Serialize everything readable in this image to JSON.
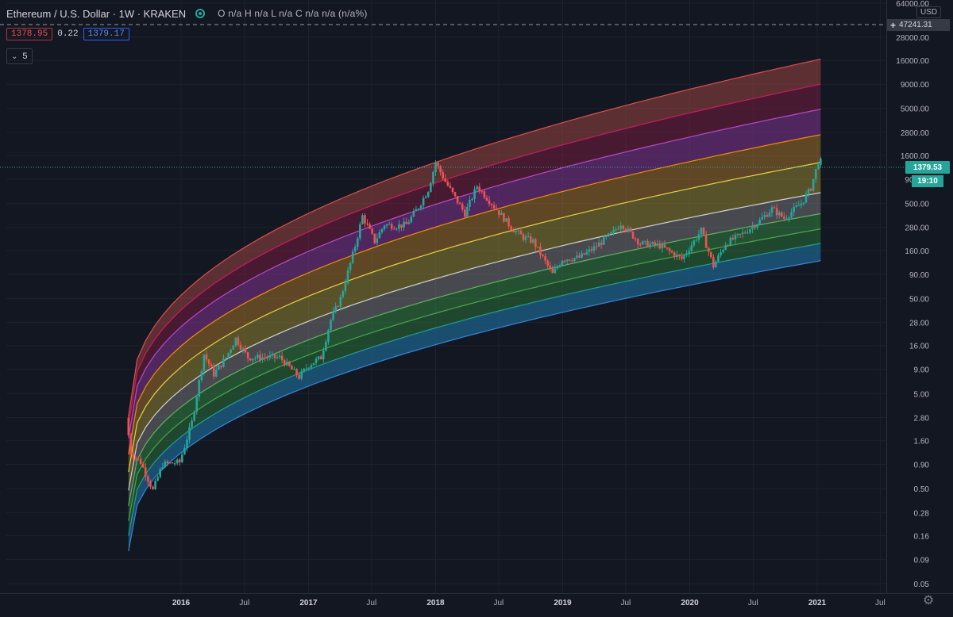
{
  "header": {
    "symbol": "Ethereum / U.S. Dollar · 1W · KRAKEN",
    "ohlc": "O n/a  H n/a  L n/a  C n/a  n/a (n/a%)",
    "bid": "1378.95",
    "spread": "0.22",
    "ask": "1379.17",
    "indicator_count": "5",
    "indicator_chevron": "chevron-down-icon"
  },
  "price_axis": {
    "currency": "USD",
    "crosshair_value": "47241.31",
    "current_price": "1379.53",
    "countdown": "19:10"
  },
  "colors": {
    "background": "#131722",
    "grid": "#1e222d",
    "candle_up": "#26a69a",
    "candle_down": "#ef5350",
    "price_tag": "#26a69a",
    "bid_red": "#ef5350",
    "ask_blue": "#2962ff"
  },
  "chart_data": {
    "type": "candlestick",
    "title": "Ethereum / U.S. Dollar · 1W · KRAKEN",
    "y_scale": "log",
    "ylim": [
      0.04,
      64000
    ],
    "y_ticks": [
      {
        "label": "64000.00",
        "value": 64000
      },
      {
        "label": "47241.31",
        "value": 47241.31,
        "hidden": true
      },
      {
        "label": "28000.00",
        "value": 28000
      },
      {
        "label": "16000.00",
        "value": 16000
      },
      {
        "label": "9000.00",
        "value": 9000
      },
      {
        "label": "5000.00",
        "value": 5000
      },
      {
        "label": "2800.00",
        "value": 2800
      },
      {
        "label": "1600.00",
        "value": 1600
      },
      {
        "label": "900.00",
        "value": 900
      },
      {
        "label": "500.00",
        "value": 500
      },
      {
        "label": "280.00",
        "value": 280
      },
      {
        "label": "160.00",
        "value": 160
      },
      {
        "label": "90.00",
        "value": 90
      },
      {
        "label": "50.00",
        "value": 50
      },
      {
        "label": "28.00",
        "value": 28
      },
      {
        "label": "16.00",
        "value": 16
      },
      {
        "label": "9.00",
        "value": 9
      },
      {
        "label": "5.00",
        "value": 5
      },
      {
        "label": "2.80",
        "value": 2.8
      },
      {
        "label": "1.60",
        "value": 1.6
      },
      {
        "label": "0.90",
        "value": 0.9
      },
      {
        "label": "0.50",
        "value": 0.5
      },
      {
        "label": "0.28",
        "value": 0.28
      },
      {
        "label": "0.16",
        "value": 0.16
      },
      {
        "label": "0.09",
        "value": 0.09
      },
      {
        "label": "0.05",
        "value": 0.05
      }
    ],
    "x_range": [
      "2015-08-03",
      "2021-09-20"
    ],
    "x_ticks": [
      {
        "label": "2016",
        "date": "2016-01-01",
        "bold": true
      },
      {
        "label": "Jul",
        "date": "2016-07-01",
        "bold": false
      },
      {
        "label": "2017",
        "date": "2017-01-01",
        "bold": true
      },
      {
        "label": "Jul",
        "date": "2017-07-01",
        "bold": false
      },
      {
        "label": "2018",
        "date": "2018-01-01",
        "bold": true
      },
      {
        "label": "Jul",
        "date": "2018-07-01",
        "bold": false
      },
      {
        "label": "2019",
        "date": "2019-01-01",
        "bold": true
      },
      {
        "label": "Jul",
        "date": "2019-07-01",
        "bold": false
      },
      {
        "label": "2020",
        "date": "2020-01-01",
        "bold": true
      },
      {
        "label": "Jul",
        "date": "2020-07-01",
        "bold": false
      },
      {
        "label": "2021",
        "date": "2021-01-01",
        "bold": true
      },
      {
        "label": "Jul",
        "date": "2021-07-01",
        "bold": false
      }
    ],
    "rainbow_bands": {
      "start_date": "2015-08-03",
      "end_date": "2021-01-11",
      "band_colors": [
        "#1e5a96",
        "#1f7a6e",
        "#2e8b3e",
        "#3fa34d",
        "#8f8f8f",
        "#b8a43a",
        "#c98a2d",
        "#a23bb0",
        "#8e1f4a",
        "#c0504d"
      ],
      "boundaries": [
        {
          "start": 0.11,
          "end": 125,
          "color": "#3a8ee6"
        },
        {
          "start": 0.16,
          "end": 190,
          "color": "#26a69a"
        },
        {
          "start": 0.23,
          "end": 270,
          "color": "#4caf50"
        },
        {
          "start": 0.33,
          "end": 390,
          "color": "#66bb6a"
        },
        {
          "start": 0.48,
          "end": 650,
          "color": "#e0e0e0"
        },
        {
          "start": 0.75,
          "end": 1350,
          "color": "#f5e04a"
        },
        {
          "start": 1.15,
          "end": 2650,
          "color": "#ff9800"
        },
        {
          "start": 1.7,
          "end": 4900,
          "color": "#c84fd8"
        },
        {
          "start": 2.3,
          "end": 9000,
          "color": "#d81b60"
        },
        {
          "start": 2.9,
          "end": 16500,
          "color": "#ef5350"
        }
      ]
    },
    "price_path": [
      {
        "date": "2015-08-03",
        "value": 2.77
      },
      {
        "date": "2015-08-17",
        "value": 1.2
      },
      {
        "date": "2015-09-14",
        "value": 0.95
      },
      {
        "date": "2015-10-19",
        "value": 0.48
      },
      {
        "date": "2015-11-16",
        "value": 0.9
      },
      {
        "date": "2016-01-04",
        "value": 0.95
      },
      {
        "date": "2016-02-08",
        "value": 2.5
      },
      {
        "date": "2016-03-14",
        "value": 13
      },
      {
        "date": "2016-04-11",
        "value": 8
      },
      {
        "date": "2016-05-16",
        "value": 12
      },
      {
        "date": "2016-06-13",
        "value": 19
      },
      {
        "date": "2016-07-18",
        "value": 12
      },
      {
        "date": "2016-09-12",
        "value": 12
      },
      {
        "date": "2016-10-17",
        "value": 12
      },
      {
        "date": "2016-12-12",
        "value": 7.5
      },
      {
        "date": "2017-01-09",
        "value": 10
      },
      {
        "date": "2017-02-13",
        "value": 12
      },
      {
        "date": "2017-03-13",
        "value": 30
      },
      {
        "date": "2017-04-10",
        "value": 50
      },
      {
        "date": "2017-05-22",
        "value": 180
      },
      {
        "date": "2017-06-12",
        "value": 370
      },
      {
        "date": "2017-07-17",
        "value": 200
      },
      {
        "date": "2017-08-14",
        "value": 300
      },
      {
        "date": "2017-09-18",
        "value": 290
      },
      {
        "date": "2017-10-16",
        "value": 300
      },
      {
        "date": "2017-11-20",
        "value": 460
      },
      {
        "date": "2017-12-18",
        "value": 700
      },
      {
        "date": "2018-01-08",
        "value": 1350
      },
      {
        "date": "2018-02-05",
        "value": 850
      },
      {
        "date": "2018-04-02",
        "value": 390
      },
      {
        "date": "2018-05-07",
        "value": 760
      },
      {
        "date": "2018-06-18",
        "value": 500
      },
      {
        "date": "2018-08-13",
        "value": 280
      },
      {
        "date": "2018-09-17",
        "value": 220
      },
      {
        "date": "2018-10-15",
        "value": 200
      },
      {
        "date": "2018-12-10",
        "value": 90
      },
      {
        "date": "2019-01-07",
        "value": 130
      },
      {
        "date": "2019-02-25",
        "value": 135
      },
      {
        "date": "2019-04-08",
        "value": 170
      },
      {
        "date": "2019-06-03",
        "value": 250
      },
      {
        "date": "2019-06-24",
        "value": 310
      },
      {
        "date": "2019-08-19",
        "value": 190
      },
      {
        "date": "2019-10-14",
        "value": 180
      },
      {
        "date": "2019-12-16",
        "value": 130
      },
      {
        "date": "2020-02-10",
        "value": 260
      },
      {
        "date": "2020-03-16",
        "value": 110
      },
      {
        "date": "2020-04-20",
        "value": 190
      },
      {
        "date": "2020-06-08",
        "value": 240
      },
      {
        "date": "2020-07-27",
        "value": 330
      },
      {
        "date": "2020-08-31",
        "value": 440
      },
      {
        "date": "2020-10-05",
        "value": 350
      },
      {
        "date": "2020-11-23",
        "value": 500
      },
      {
        "date": "2020-12-21",
        "value": 730
      },
      {
        "date": "2021-01-11",
        "value": 1379.53
      }
    ]
  },
  "settings_icon": "gear-icon"
}
